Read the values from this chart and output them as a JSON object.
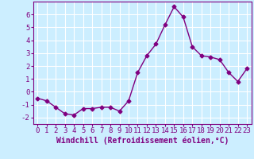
{
  "x": [
    0,
    1,
    2,
    3,
    4,
    5,
    6,
    7,
    8,
    9,
    10,
    11,
    12,
    13,
    14,
    15,
    16,
    17,
    18,
    19,
    20,
    21,
    22,
    23
  ],
  "y": [
    -0.5,
    -0.7,
    -1.2,
    -1.7,
    -1.8,
    -1.3,
    -1.3,
    -1.2,
    -1.2,
    -1.5,
    -0.7,
    1.5,
    2.8,
    3.7,
    5.2,
    6.6,
    5.8,
    3.5,
    2.8,
    2.7,
    2.5,
    1.5,
    0.8,
    1.8
  ],
  "line_color": "#800080",
  "marker": "D",
  "markersize": 2.5,
  "linewidth": 1.0,
  "background_color": "#cceeff",
  "grid_color": "#ffffff",
  "xlabel": "Windchill (Refroidissement éolien,°C)",
  "xlim": [
    -0.5,
    23.5
  ],
  "ylim": [
    -2.5,
    7.0
  ],
  "xticks": [
    0,
    1,
    2,
    3,
    4,
    5,
    6,
    7,
    8,
    9,
    10,
    11,
    12,
    13,
    14,
    15,
    16,
    17,
    18,
    19,
    20,
    21,
    22,
    23
  ],
  "yticks": [
    -2,
    -1,
    0,
    1,
    2,
    3,
    4,
    5,
    6
  ],
  "xlabel_fontsize": 7,
  "tick_fontsize": 6.5,
  "spine_color": "#800080"
}
